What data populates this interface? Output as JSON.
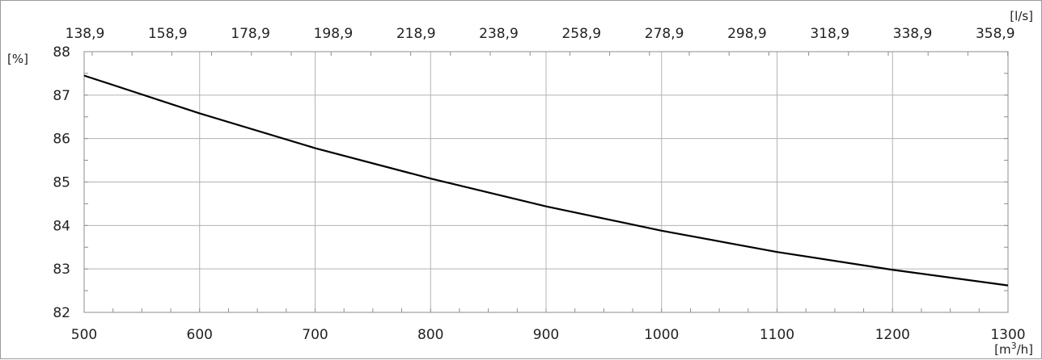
{
  "chart_data": {
    "type": "line",
    "title": "",
    "x": [
      500,
      600,
      700,
      800,
      900,
      1000,
      1100,
      1200,
      1300
    ],
    "series": [
      {
        "values": [
          87.45,
          86.58,
          85.78,
          85.08,
          84.44,
          83.88,
          83.39,
          82.98,
          82.62
        ]
      }
    ],
    "xlim": [
      500,
      1300
    ],
    "ylim": [
      82,
      88
    ],
    "x_ticks": [
      "500",
      "600",
      "700",
      "800",
      "900",
      "1000",
      "1100",
      "1200",
      "1300"
    ],
    "y_ticks": [
      "82",
      "83",
      "84",
      "85",
      "86",
      "87",
      "88"
    ],
    "top_ticks": [
      "138,9",
      "158,9",
      "178,9",
      "198,9",
      "218,9",
      "238,9",
      "258,9",
      "278,9",
      "298,9",
      "318,9",
      "338,9",
      "358,9"
    ],
    "xlabel_main": "[m",
    "xlabel_sup": "3",
    "xlabel_tail": "/h]",
    "ylabel": "[%]",
    "top_axis_label": "[l/s]",
    "grid": true,
    "line_color": "#000000",
    "grid_color": "#b3b3b3"
  }
}
